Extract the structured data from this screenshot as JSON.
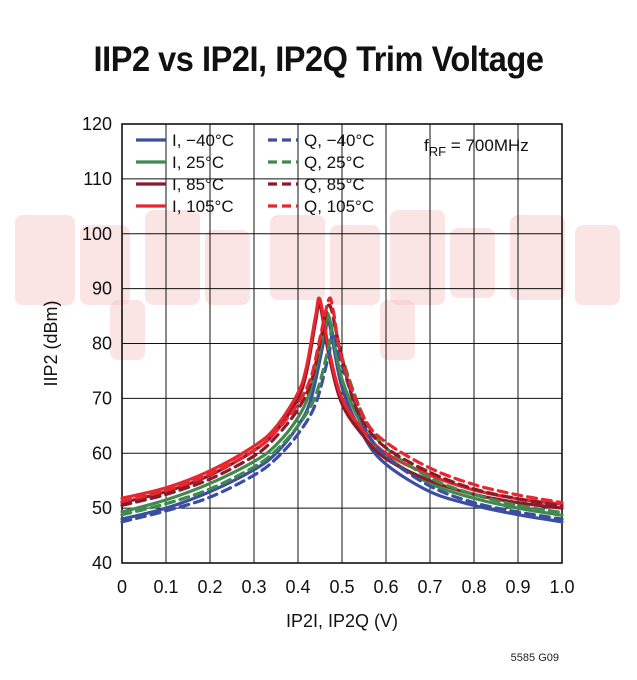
{
  "chart_data": {
    "type": "line",
    "title": "IIP2 vs IP2I, IP2Q Trim Voltage",
    "xlabel": "IP2I, IP2Q (V)",
    "ylabel": "IIP2 (dBm)",
    "xlim": [
      0,
      1.0
    ],
    "ylim": [
      40,
      120
    ],
    "x_ticks": [
      "0",
      "0.1",
      "0.2",
      "0.3",
      "0.4",
      "0.5",
      "0.6",
      "0.7",
      "0.8",
      "0.9",
      "1.0"
    ],
    "y_ticks": [
      "40",
      "50",
      "60",
      "70",
      "80",
      "90",
      "100",
      "110",
      "120"
    ],
    "grid": true,
    "legend_placement": "top-left",
    "annotation": {
      "main": "f",
      "sub": "RF",
      "rest": " = 700MHz"
    },
    "figure_id": "5585 G09",
    "series": [
      {
        "name": "I, −40°C",
        "color": "#3b4ea0",
        "style": "solid",
        "x": [
          0,
          0.1,
          0.2,
          0.3,
          0.35,
          0.4,
          0.43,
          0.46,
          0.47,
          0.5,
          0.55,
          0.6,
          0.7,
          0.8,
          0.9,
          1.0
        ],
        "y": [
          48,
          50,
          53,
          57,
          60,
          65,
          70,
          81,
          84,
          72,
          63,
          58,
          53,
          50.5,
          48.8,
          47.5
        ]
      },
      {
        "name": "I, 25°C",
        "color": "#3f8a4c",
        "style": "solid",
        "x": [
          0,
          0.1,
          0.2,
          0.3,
          0.35,
          0.4,
          0.43,
          0.46,
          0.47,
          0.5,
          0.55,
          0.6,
          0.7,
          0.8,
          0.9,
          1.0
        ],
        "y": [
          49.3,
          51.5,
          54.5,
          58.5,
          61.5,
          66.5,
          72,
          82.5,
          85,
          73.5,
          64.5,
          59.5,
          54.5,
          51.8,
          50,
          48.7
        ]
      },
      {
        "name": "I, 85°C",
        "color": "#8b1a2a",
        "style": "solid",
        "x": [
          0,
          0.1,
          0.2,
          0.3,
          0.35,
          0.4,
          0.42,
          0.44,
          0.45,
          0.47,
          0.5,
          0.55,
          0.6,
          0.7,
          0.8,
          0.9,
          1.0
        ],
        "y": [
          51,
          53,
          56,
          60.5,
          64,
          70,
          75,
          84,
          87,
          78,
          69,
          63,
          59,
          55,
          52.5,
          51,
          50
        ]
      },
      {
        "name": "I, 105°C",
        "color": "#e8262e",
        "style": "solid",
        "x": [
          0,
          0.1,
          0.2,
          0.3,
          0.35,
          0.4,
          0.42,
          0.44,
          0.45,
          0.47,
          0.5,
          0.55,
          0.6,
          0.7,
          0.8,
          0.9,
          1.0
        ],
        "y": [
          51.8,
          53.7,
          56.8,
          61.3,
          64.8,
          71,
          76,
          85,
          88,
          79,
          70,
          64,
          60,
          56,
          53.3,
          51.7,
          50.7
        ]
      },
      {
        "name": "Q, −40°C",
        "color": "#3b4ea0",
        "style": "dashed",
        "x": [
          0,
          0.1,
          0.2,
          0.3,
          0.35,
          0.4,
          0.44,
          0.47,
          0.48,
          0.5,
          0.55,
          0.6,
          0.7,
          0.8,
          0.9,
          1.0
        ],
        "y": [
          47.5,
          49.5,
          52,
          56,
          59,
          63.5,
          69,
          78,
          82,
          76,
          65,
          59.5,
          54,
          51,
          49.3,
          48
        ]
      },
      {
        "name": "Q, 25°C",
        "color": "#3f8a4c",
        "style": "dashed",
        "x": [
          0,
          0.1,
          0.2,
          0.3,
          0.35,
          0.4,
          0.44,
          0.47,
          0.48,
          0.5,
          0.55,
          0.6,
          0.7,
          0.8,
          0.9,
          1.0
        ],
        "y": [
          48.8,
          50.8,
          53.5,
          57.5,
          60.5,
          65,
          70.5,
          79.5,
          84,
          77.5,
          66.5,
          61,
          55.5,
          52.5,
          50.5,
          49.2
        ]
      },
      {
        "name": "Q, 85°C",
        "color": "#8b1a2a",
        "style": "dashed",
        "x": [
          0,
          0.1,
          0.2,
          0.3,
          0.35,
          0.4,
          0.43,
          0.45,
          0.47,
          0.49,
          0.52,
          0.55,
          0.6,
          0.7,
          0.8,
          0.9,
          1.0
        ],
        "y": [
          50.5,
          52.5,
          55.3,
          59.5,
          63,
          68,
          73,
          80,
          87,
          81,
          71,
          65.5,
          61,
          56.5,
          53.5,
          51.7,
          50.4
        ]
      },
      {
        "name": "Q, 105°C",
        "color": "#e8262e",
        "style": "dashed",
        "x": [
          0,
          0.1,
          0.2,
          0.3,
          0.35,
          0.4,
          0.43,
          0.45,
          0.47,
          0.48,
          0.5,
          0.55,
          0.6,
          0.7,
          0.8,
          0.9,
          1.0
        ],
        "y": [
          51.2,
          53.2,
          56.2,
          60.5,
          64,
          69,
          74,
          81,
          88,
          86,
          77,
          66.5,
          62,
          57.3,
          54.3,
          52.4,
          51
        ]
      }
    ]
  }
}
